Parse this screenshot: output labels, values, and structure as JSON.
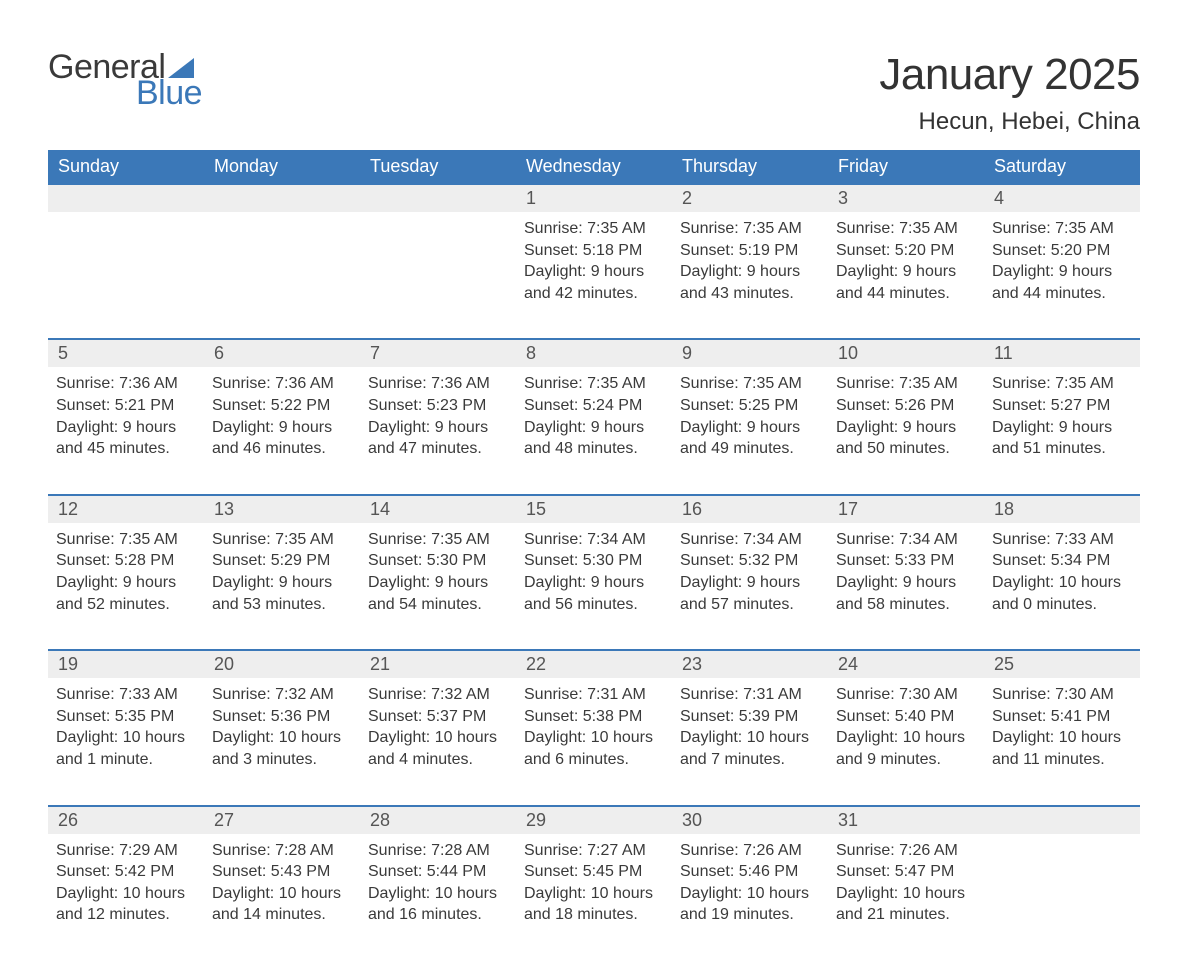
{
  "logo": {
    "text1": "General",
    "text2": "Blue",
    "sail_color": "#3b78b8"
  },
  "title": "January 2025",
  "location": "Hecun, Hebei, China",
  "colors": {
    "header_bg": "#3b78b8",
    "header_text": "#ffffff",
    "daynum_bg": "#eeeeee",
    "daynum_border": "#3b78b8",
    "body_text": "#3a3a3a",
    "page_bg": "#ffffff"
  },
  "week_headers": [
    "Sunday",
    "Monday",
    "Tuesday",
    "Wednesday",
    "Thursday",
    "Friday",
    "Saturday"
  ],
  "weeks": [
    [
      null,
      null,
      null,
      {
        "n": "1",
        "sr": "Sunrise: 7:35 AM",
        "ss": "Sunset: 5:18 PM",
        "dl": "Daylight: 9 hours and 42 minutes."
      },
      {
        "n": "2",
        "sr": "Sunrise: 7:35 AM",
        "ss": "Sunset: 5:19 PM",
        "dl": "Daylight: 9 hours and 43 minutes."
      },
      {
        "n": "3",
        "sr": "Sunrise: 7:35 AM",
        "ss": "Sunset: 5:20 PM",
        "dl": "Daylight: 9 hours and 44 minutes."
      },
      {
        "n": "4",
        "sr": "Sunrise: 7:35 AM",
        "ss": "Sunset: 5:20 PM",
        "dl": "Daylight: 9 hours and 44 minutes."
      }
    ],
    [
      {
        "n": "5",
        "sr": "Sunrise: 7:36 AM",
        "ss": "Sunset: 5:21 PM",
        "dl": "Daylight: 9 hours and 45 minutes."
      },
      {
        "n": "6",
        "sr": "Sunrise: 7:36 AM",
        "ss": "Sunset: 5:22 PM",
        "dl": "Daylight: 9 hours and 46 minutes."
      },
      {
        "n": "7",
        "sr": "Sunrise: 7:36 AM",
        "ss": "Sunset: 5:23 PM",
        "dl": "Daylight: 9 hours and 47 minutes."
      },
      {
        "n": "8",
        "sr": "Sunrise: 7:35 AM",
        "ss": "Sunset: 5:24 PM",
        "dl": "Daylight: 9 hours and 48 minutes."
      },
      {
        "n": "9",
        "sr": "Sunrise: 7:35 AM",
        "ss": "Sunset: 5:25 PM",
        "dl": "Daylight: 9 hours and 49 minutes."
      },
      {
        "n": "10",
        "sr": "Sunrise: 7:35 AM",
        "ss": "Sunset: 5:26 PM",
        "dl": "Daylight: 9 hours and 50 minutes."
      },
      {
        "n": "11",
        "sr": "Sunrise: 7:35 AM",
        "ss": "Sunset: 5:27 PM",
        "dl": "Daylight: 9 hours and 51 minutes."
      }
    ],
    [
      {
        "n": "12",
        "sr": "Sunrise: 7:35 AM",
        "ss": "Sunset: 5:28 PM",
        "dl": "Daylight: 9 hours and 52 minutes."
      },
      {
        "n": "13",
        "sr": "Sunrise: 7:35 AM",
        "ss": "Sunset: 5:29 PM",
        "dl": "Daylight: 9 hours and 53 minutes."
      },
      {
        "n": "14",
        "sr": "Sunrise: 7:35 AM",
        "ss": "Sunset: 5:30 PM",
        "dl": "Daylight: 9 hours and 54 minutes."
      },
      {
        "n": "15",
        "sr": "Sunrise: 7:34 AM",
        "ss": "Sunset: 5:30 PM",
        "dl": "Daylight: 9 hours and 56 minutes."
      },
      {
        "n": "16",
        "sr": "Sunrise: 7:34 AM",
        "ss": "Sunset: 5:32 PM",
        "dl": "Daylight: 9 hours and 57 minutes."
      },
      {
        "n": "17",
        "sr": "Sunrise: 7:34 AM",
        "ss": "Sunset: 5:33 PM",
        "dl": "Daylight: 9 hours and 58 minutes."
      },
      {
        "n": "18",
        "sr": "Sunrise: 7:33 AM",
        "ss": "Sunset: 5:34 PM",
        "dl": "Daylight: 10 hours and 0 minutes."
      }
    ],
    [
      {
        "n": "19",
        "sr": "Sunrise: 7:33 AM",
        "ss": "Sunset: 5:35 PM",
        "dl": "Daylight: 10 hours and 1 minute."
      },
      {
        "n": "20",
        "sr": "Sunrise: 7:32 AM",
        "ss": "Sunset: 5:36 PM",
        "dl": "Daylight: 10 hours and 3 minutes."
      },
      {
        "n": "21",
        "sr": "Sunrise: 7:32 AM",
        "ss": "Sunset: 5:37 PM",
        "dl": "Daylight: 10 hours and 4 minutes."
      },
      {
        "n": "22",
        "sr": "Sunrise: 7:31 AM",
        "ss": "Sunset: 5:38 PM",
        "dl": "Daylight: 10 hours and 6 minutes."
      },
      {
        "n": "23",
        "sr": "Sunrise: 7:31 AM",
        "ss": "Sunset: 5:39 PM",
        "dl": "Daylight: 10 hours and 7 minutes."
      },
      {
        "n": "24",
        "sr": "Sunrise: 7:30 AM",
        "ss": "Sunset: 5:40 PM",
        "dl": "Daylight: 10 hours and 9 minutes."
      },
      {
        "n": "25",
        "sr": "Sunrise: 7:30 AM",
        "ss": "Sunset: 5:41 PM",
        "dl": "Daylight: 10 hours and 11 minutes."
      }
    ],
    [
      {
        "n": "26",
        "sr": "Sunrise: 7:29 AM",
        "ss": "Sunset: 5:42 PM",
        "dl": "Daylight: 10 hours and 12 minutes."
      },
      {
        "n": "27",
        "sr": "Sunrise: 7:28 AM",
        "ss": "Sunset: 5:43 PM",
        "dl": "Daylight: 10 hours and 14 minutes."
      },
      {
        "n": "28",
        "sr": "Sunrise: 7:28 AM",
        "ss": "Sunset: 5:44 PM",
        "dl": "Daylight: 10 hours and 16 minutes."
      },
      {
        "n": "29",
        "sr": "Sunrise: 7:27 AM",
        "ss": "Sunset: 5:45 PM",
        "dl": "Daylight: 10 hours and 18 minutes."
      },
      {
        "n": "30",
        "sr": "Sunrise: 7:26 AM",
        "ss": "Sunset: 5:46 PM",
        "dl": "Daylight: 10 hours and 19 minutes."
      },
      {
        "n": "31",
        "sr": "Sunrise: 7:26 AM",
        "ss": "Sunset: 5:47 PM",
        "dl": "Daylight: 10 hours and 21 minutes."
      },
      null
    ]
  ]
}
